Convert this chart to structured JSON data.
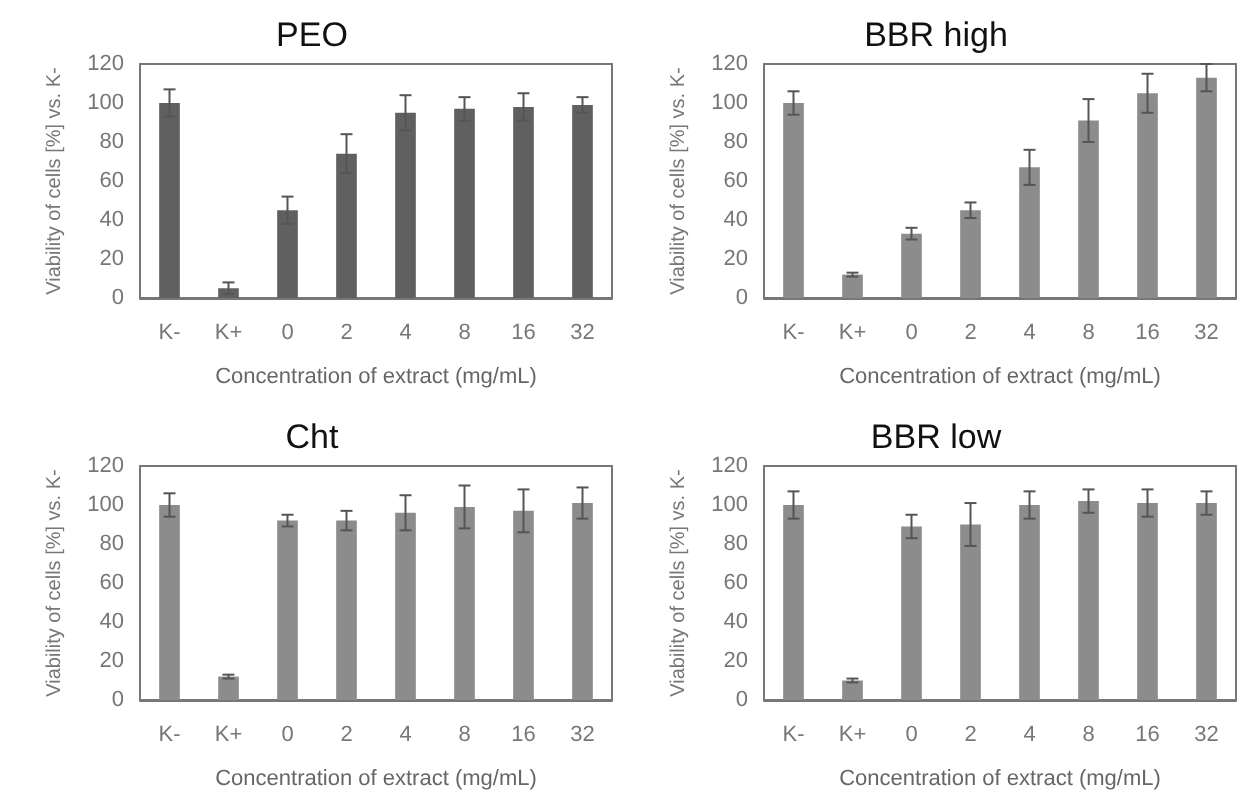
{
  "chart_data": [
    {
      "type": "bar",
      "title": "PEO",
      "xlabel": "Concentration of extract (mg/mL)",
      "ylabel": "Viability of cells [%] vs. K-",
      "categories": [
        "K-",
        "K+",
        "0",
        "2",
        "4",
        "8",
        "16",
        "32"
      ],
      "values": [
        100,
        5,
        45,
        74,
        95,
        97,
        98,
        99
      ],
      "errors": [
        7,
        3,
        7,
        10,
        9,
        6,
        7,
        4
      ],
      "color": "#606060",
      "ylim": [
        0,
        120
      ],
      "yticks": [
        0,
        20,
        40,
        60,
        80,
        100,
        120
      ]
    },
    {
      "type": "bar",
      "title": "BBR high",
      "xlabel": "Concentration of extract (mg/mL)",
      "ylabel": "Viability of cells [%] vs. K-",
      "categories": [
        "K-",
        "K+",
        "0",
        "2",
        "4",
        "8",
        "16",
        "32"
      ],
      "values": [
        100,
        12,
        33,
        45,
        67,
        91,
        105,
        113
      ],
      "errors": [
        6,
        1,
        3,
        4,
        9,
        11,
        10,
        7
      ],
      "color": "#8c8c8c",
      "ylim": [
        0,
        120
      ],
      "yticks": [
        0,
        20,
        40,
        60,
        80,
        100,
        120
      ]
    },
    {
      "type": "bar",
      "title": "Cht",
      "xlabel": "Concentration of extract (mg/mL)",
      "ylabel": "Viability of cells [%] vs. K-",
      "categories": [
        "K-",
        "K+",
        "0",
        "2",
        "4",
        "8",
        "16",
        "32"
      ],
      "values": [
        100,
        12,
        92,
        92,
        96,
        99,
        97,
        101
      ],
      "errors": [
        6,
        1,
        3,
        5,
        9,
        11,
        11,
        8
      ],
      "color": "#8c8c8c",
      "ylim": [
        0,
        120
      ],
      "yticks": [
        0,
        20,
        40,
        60,
        80,
        100,
        120
      ]
    },
    {
      "type": "bar",
      "title": "BBR low",
      "xlabel": "Concentration of extract (mg/mL)",
      "ylabel": "Viability of cells [%] vs. K-",
      "categories": [
        "K-",
        "K+",
        "0",
        "2",
        "4",
        "8",
        "16",
        "32"
      ],
      "values": [
        100,
        10,
        89,
        90,
        100,
        102,
        101,
        101
      ],
      "errors": [
        7,
        1,
        6,
        11,
        7,
        6,
        7,
        6
      ],
      "color": "#8c8c8c",
      "ylim": [
        0,
        120
      ],
      "yticks": [
        0,
        20,
        40,
        60,
        80,
        100,
        120
      ]
    }
  ]
}
